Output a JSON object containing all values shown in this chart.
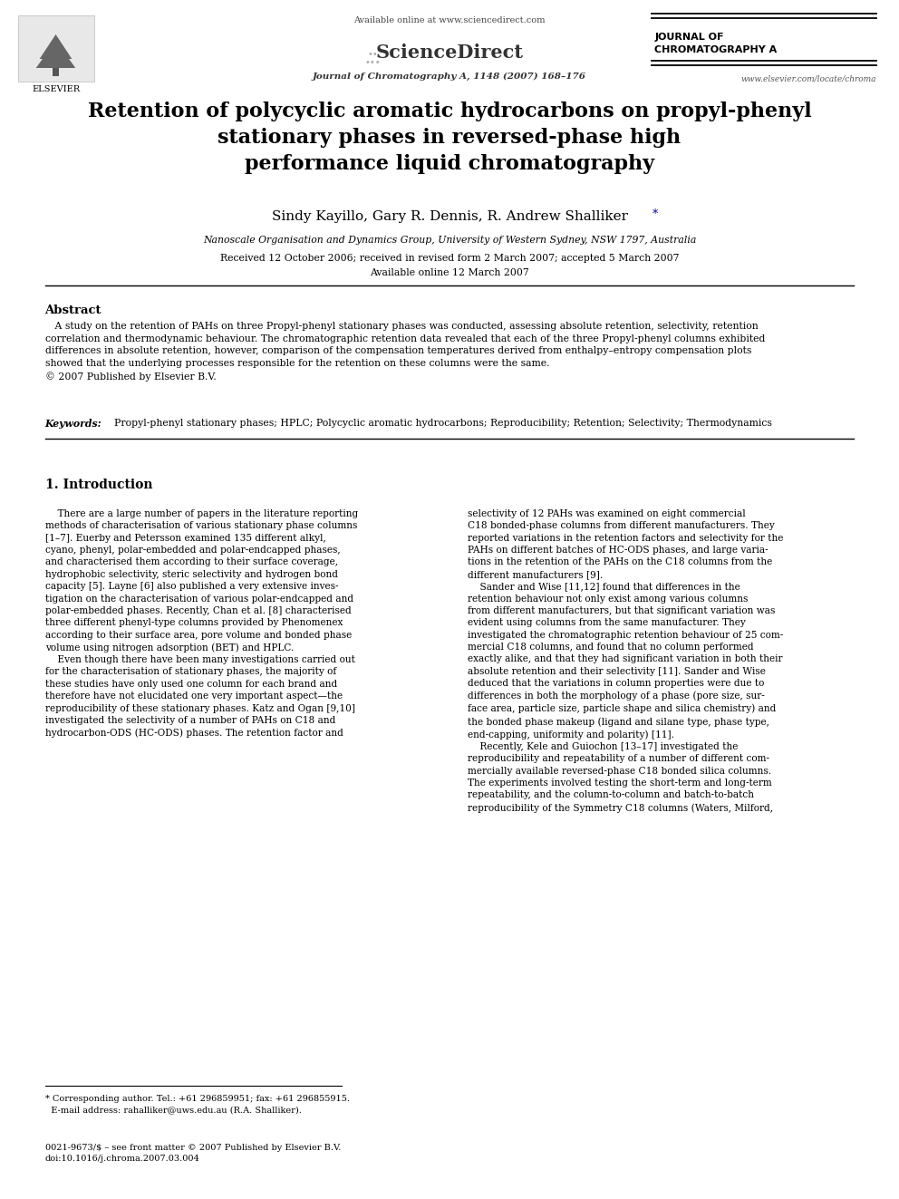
{
  "page_width": 9.92,
  "page_height": 13.23,
  "bg_color": "#ffffff",
  "header": {
    "available_online": "Available online at www.sciencedirect.com",
    "sciencedirect": "ScienceDirect",
    "journal_line": "Journal of Chromatography A, 1148 (2007) 168–176",
    "journal_name_line1": "JOURNAL OF",
    "journal_name_line2": "CHROMATOGRAPHY A",
    "elsevier": "ELSEVIER",
    "website": "www.elsevier.com/locate/chroma"
  },
  "title": "Retention of polycyclic aromatic hydrocarbons on propyl-phenyl\nstationary phases in reversed-phase high\nperformance liquid chromatography",
  "authors": "Sindy Kayillo, Gary R. Dennis, R. Andrew Shalliker",
  "author_star": "*",
  "affiliation": "Nanoscale Organisation and Dynamics Group, University of Western Sydney, NSW 1797, Australia",
  "dates": "Received 12 October 2006; received in revised form 2 March 2007; accepted 5 March 2007",
  "available_online_date": "Available online 12 March 2007",
  "abstract_title": "Abstract",
  "abstract_text": "   A study on the retention of PAHs on three Propyl-phenyl stationary phases was conducted, assessing absolute retention, selectivity, retention\ncorrelation and thermodynamic behaviour. The chromatographic retention data revealed that each of the three Propyl-phenyl columns exhibited\ndifferences in absolute retention, however, comparison of the compensation temperatures derived from enthalpy–entropy compensation plots\nshowed that the underlying processes responsible for the retention on these columns were the same.\n© 2007 Published by Elsevier B.V.",
  "keywords_label": "Keywords:",
  "keywords_text": "  Propyl-phenyl stationary phases; HPLC; Polycyclic aromatic hydrocarbons; Reproducibility; Retention; Selectivity; Thermodynamics",
  "section1_title": "1. Introduction",
  "section1_left": "    There are a large number of papers in the literature reporting\nmethods of characterisation of various stationary phase columns\n[1–7]. Euerby and Petersson examined 135 different alkyl,\ncyano, phenyl, polar-embedded and polar-endcapped phases,\nand characterised them according to their surface coverage,\nhydrophobic selectivity, steric selectivity and hydrogen bond\ncapacity [5]. Layne [6] also published a very extensive inves-\ntigation on the characterisation of various polar-endcapped and\npolar-embedded phases. Recently, Chan et al. [8] characterised\nthree different phenyl-type columns provided by Phenomenex\naccording to their surface area, pore volume and bonded phase\nvolume using nitrogen adsorption (BET) and HPLC.\n    Even though there have been many investigations carried out\nfor the characterisation of stationary phases, the majority of\nthese studies have only used one column for each brand and\ntherefore have not elucidated one very important aspect—the\nreproducibility of these stationary phases. Katz and Ogan [9,10]\ninvestigated the selectivity of a number of PAHs on C18 and\nhydrocarbon-ODS (HC-ODS) phases. The retention factor and",
  "section1_right": "selectivity of 12 PAHs was examined on eight commercial\nC18 bonded-phase columns from different manufacturers. They\nreported variations in the retention factors and selectivity for the\nPAHs on different batches of HC-ODS phases, and large varia-\ntions in the retention of the PAHs on the C18 columns from the\ndifferent manufacturers [9].\n    Sander and Wise [11,12] found that differences in the\nretention behaviour not only exist among various columns\nfrom different manufacturers, but that significant variation was\nevident using columns from the same manufacturer. They\ninvestigated the chromatographic retention behaviour of 25 com-\nmercial C18 columns, and found that no column performed\nexactly alike, and that they had significant variation in both their\nabsolute retention and their selectivity [11]. Sander and Wise\ndeduced that the variations in column properties were due to\ndifferences in both the morphology of a phase (pore size, sur-\nface area, particle size, particle shape and silica chemistry) and\nthe bonded phase makeup (ligand and silane type, phase type,\nend-capping, uniformity and polarity) [11].\n    Recently, Kele and Guiochon [13–17] investigated the\nreproducibility and repeatability of a number of different com-\nmercially available reversed-phase C18 bonded silica columns.\nThe experiments involved testing the short-term and long-term\nrepeatability, and the column-to-column and batch-to-batch\nreproducibility of the Symmetry C18 columns (Waters, Milford,",
  "footer_left": "* Corresponding author. Tel.: +61 296859951; fax: +61 296855915.\n  E-mail address: rahalliker@uws.edu.au (R.A. Shalliker).",
  "footer_bottom": "0021-9673/$ – see front matter © 2007 Published by Elsevier B.V.\ndoi:10.1016/j.chroma.2007.03.004"
}
